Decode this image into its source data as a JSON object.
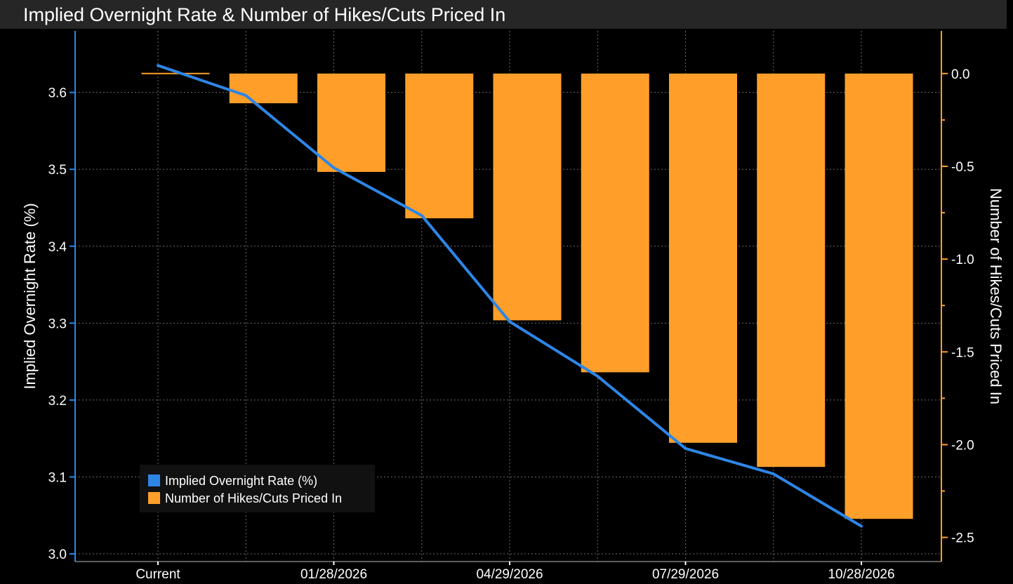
{
  "window": {
    "title": "Implied Overnight Rate & Number of Hikes/Cuts Priced In"
  },
  "colors": {
    "background": "#000000",
    "rate_line": "#2d86e6",
    "bars": "#ff9f2a",
    "grid": "#6b6b6b",
    "left_axis": "#2d86e6",
    "right_axis": "#ff9f2a"
  },
  "chart_data": {
    "type": "bar",
    "title": "Implied Overnight Rate & Number of Hikes/Cuts Priced In",
    "categories": [
      "Current",
      "",
      "",
      "",
      "",
      "",
      "",
      "",
      ""
    ],
    "x_tick_labels": [
      "Current",
      "01/28/2026",
      "04/29/2026",
      "07/29/2026",
      "10/28/2026"
    ],
    "series": [
      {
        "name": "Implied Overnight Rate (%)",
        "type": "line",
        "axis": "left",
        "color": "#2d86e6",
        "values": [
          3.635,
          3.596,
          3.502,
          3.44,
          3.302,
          3.231,
          3.137,
          3.104,
          3.036
        ]
      },
      {
        "name": "Number of Hikes/Cuts Priced In",
        "type": "bar",
        "axis": "right",
        "color": "#ff9f2a",
        "values": [
          0.0,
          -0.16,
          -0.53,
          -0.78,
          -1.33,
          -1.61,
          -1.99,
          -2.12,
          -2.4
        ]
      }
    ],
    "y_left": {
      "label": "Implied Overnight Rate (%)",
      "ylim": [
        2.99,
        3.68
      ],
      "ticks": [
        "3.0",
        "3.1",
        "3.2",
        "3.3",
        "3.4",
        "3.5",
        "3.6"
      ]
    },
    "y_right": {
      "label": "Number of Hikes/Cuts Priced In",
      "ylim": [
        -2.63,
        0.23
      ],
      "ticks": [
        "0.0",
        "-0.5",
        "-1.0",
        "-1.5",
        "-2.0",
        "-2.5"
      ]
    },
    "grid": true,
    "legend": {
      "placement": "bottom-left",
      "entries": [
        "Implied Overnight Rate (%)",
        "Number of Hikes/Cuts Priced In"
      ]
    }
  }
}
